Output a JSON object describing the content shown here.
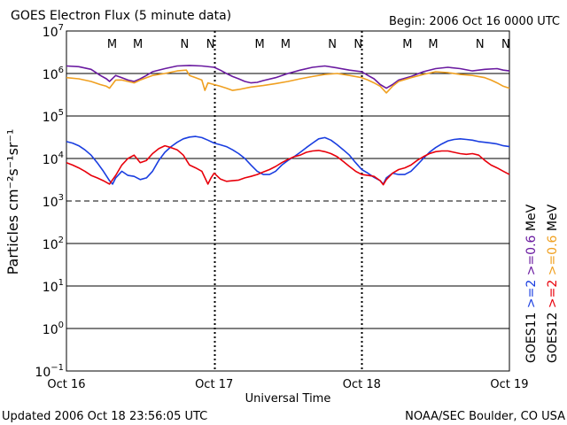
{
  "title": "GOES Electron Flux (5 minute data)",
  "begin_label": "Begin: 2006 Oct 16 0000 UTC",
  "updated_label": "Updated 2006 Oct 18 23:56:05 UTC",
  "credit_label": "NOAA/SEC Boulder, CO USA",
  "chart_data": {
    "type": "line",
    "title": "GOES Electron Flux (5 minute data)",
    "xlabel": "Universal Time",
    "ylabel": "Particles cm⁻²s⁻¹sr⁻¹",
    "y_scale": "log",
    "ylim": [
      0.1,
      10000000
    ],
    "xlim": [
      0,
      72
    ],
    "x_units": "hours since 2006 Oct 16 0000 UTC",
    "x_ticks": [
      {
        "x": 0,
        "label": "Oct 16"
      },
      {
        "x": 24,
        "label": "Oct 17"
      },
      {
        "x": 48,
        "label": "Oct 18"
      },
      {
        "x": 72,
        "label": "Oct 19"
      }
    ],
    "y_ticks": [
      {
        "value": 0.1,
        "base": "10",
        "exp": "−1"
      },
      {
        "value": 1,
        "base": "10",
        "exp": "0"
      },
      {
        "value": 10,
        "base": "10",
        "exp": "1"
      },
      {
        "value": 100,
        "base": "10",
        "exp": "2"
      },
      {
        "value": 1000,
        "base": "10",
        "exp": "3"
      },
      {
        "value": 10000,
        "base": "10",
        "exp": "4"
      },
      {
        "value": 100000,
        "base": "10",
        "exp": "5"
      },
      {
        "value": 1000000,
        "base": "10",
        "exp": "6"
      },
      {
        "value": 10000000,
        "base": "10",
        "exp": "7"
      }
    ],
    "threshold_line": 1000,
    "markers": [
      {
        "x": 7.7,
        "label": "M",
        "color": "#e8000b"
      },
      {
        "x": 11.9,
        "label": "M",
        "color": "#1a3ee0"
      },
      {
        "x": 19.5,
        "label": "N",
        "color": "#e8000b"
      },
      {
        "x": 23.7,
        "label": "N",
        "color": "#1a3ee0"
      },
      {
        "x": 31.7,
        "label": "M",
        "color": "#e8000b"
      },
      {
        "x": 35.9,
        "label": "M",
        "color": "#1a3ee0"
      },
      {
        "x": 43.5,
        "label": "N",
        "color": "#e8000b"
      },
      {
        "x": 47.7,
        "label": "N",
        "color": "#1a3ee0"
      },
      {
        "x": 55.7,
        "label": "M",
        "color": "#e8000b"
      },
      {
        "x": 59.9,
        "label": "M",
        "color": "#1a3ee0"
      },
      {
        "x": 67.5,
        "label": "N",
        "color": "#e8000b"
      },
      {
        "x": 71.7,
        "label": "N",
        "color": "#1a3ee0"
      }
    ],
    "legend": [
      {
        "satellite": "GOES11",
        "low": ">=2",
        "high": ">=0.6",
        "unit": "MeV",
        "low_color": "#1a3ee0",
        "high_color": "#6a1aa0"
      },
      {
        "satellite": "GOES12",
        "low": ">=2",
        "high": ">=0.6",
        "unit": "MeV",
        "low_color": "#e8000b",
        "high_color": "#f0a020"
      }
    ],
    "series": [
      {
        "color": "#6a1aa0",
        "points": [
          [
            0,
            1500000.0
          ],
          [
            2,
            1450000.0
          ],
          [
            4,
            1250000.0
          ],
          [
            5.5,
            900000.0
          ],
          [
            6.5,
            750000.0
          ],
          [
            7,
            650000.0
          ],
          [
            8,
            900000.0
          ],
          [
            9,
            800000.0
          ],
          [
            10,
            700000.0
          ],
          [
            11,
            650000.0
          ],
          [
            12,
            750000.0
          ],
          [
            13,
            900000.0
          ],
          [
            14,
            1100000.0
          ],
          [
            16,
            1300000.0
          ],
          [
            18,
            1500000.0
          ],
          [
            20,
            1550000.0
          ],
          [
            22,
            1500000.0
          ],
          [
            24,
            1400000.0
          ],
          [
            25,
            1200000.0
          ],
          [
            26,
            1000000.0
          ],
          [
            27,
            850000.0
          ],
          [
            28,
            750000.0
          ],
          [
            29,
            650000.0
          ],
          [
            30,
            600000.0
          ],
          [
            31,
            620000.0
          ],
          [
            32,
            680000.0
          ],
          [
            34,
            800000.0
          ],
          [
            36,
            1000000.0
          ],
          [
            38,
            1200000.0
          ],
          [
            40,
            1400000.0
          ],
          [
            42,
            1500000.0
          ],
          [
            44,
            1350000.0
          ],
          [
            46,
            1200000.0
          ],
          [
            48,
            1100000.0
          ],
          [
            49,
            900000.0
          ],
          [
            50,
            750000.0
          ],
          [
            51,
            550000.0
          ],
          [
            52,
            450000.0
          ],
          [
            53,
            550000.0
          ],
          [
            54,
            700000.0
          ],
          [
            56,
            850000.0
          ],
          [
            58,
            1100000.0
          ],
          [
            60,
            1300000.0
          ],
          [
            62,
            1400000.0
          ],
          [
            64,
            1300000.0
          ],
          [
            66,
            1150000.0
          ],
          [
            68,
            1250000.0
          ],
          [
            70,
            1300000.0
          ],
          [
            71,
            1200000.0
          ],
          [
            72,
            1150000.0
          ]
        ]
      },
      {
        "color": "#f0a020",
        "points": [
          [
            0,
            800000.0
          ],
          [
            2,
            750000.0
          ],
          [
            4,
            650000.0
          ],
          [
            5.5,
            550000.0
          ],
          [
            6.5,
            500000.0
          ],
          [
            7,
            450000.0
          ],
          [
            8,
            700000.0
          ],
          [
            9,
            700000.0
          ],
          [
            10,
            650000.0
          ],
          [
            11,
            600000.0
          ],
          [
            12,
            700000.0
          ],
          [
            13,
            800000.0
          ],
          [
            14,
            900000.0
          ],
          [
            16,
            1000000.0
          ],
          [
            18,
            1150000.0
          ],
          [
            19.5,
            1200000.0
          ],
          [
            20,
            900000.0
          ],
          [
            21,
            800000.0
          ],
          [
            22,
            700000.0
          ],
          [
            22.5,
            400000.0
          ],
          [
            23,
            600000.0
          ],
          [
            24,
            550000.0
          ],
          [
            25,
            500000.0
          ],
          [
            26,
            450000.0
          ],
          [
            27,
            400000.0
          ],
          [
            28,
            420000.0
          ],
          [
            30,
            480000.0
          ],
          [
            32,
            520000.0
          ],
          [
            34,
            580000.0
          ],
          [
            36,
            650000.0
          ],
          [
            38,
            750000.0
          ],
          [
            40,
            850000.0
          ],
          [
            42,
            950000.0
          ],
          [
            44,
            1000000.0
          ],
          [
            46,
            900000.0
          ],
          [
            48,
            800000.0
          ],
          [
            49,
            700000.0
          ],
          [
            50,
            600000.0
          ],
          [
            51,
            500000.0
          ],
          [
            52,
            350000.0
          ],
          [
            53,
            500000.0
          ],
          [
            54,
            650000.0
          ],
          [
            56,
            800000.0
          ],
          [
            58,
            950000.0
          ],
          [
            60,
            1100000.0
          ],
          [
            62,
            1050000.0
          ],
          [
            64,
            950000.0
          ],
          [
            66,
            900000.0
          ],
          [
            68,
            800000.0
          ],
          [
            69,
            700000.0
          ],
          [
            70,
            600000.0
          ],
          [
            71,
            500000.0
          ],
          [
            72,
            450000.0
          ]
        ]
      },
      {
        "color": "#1a3ee0",
        "points": [
          [
            0,
            25000.0
          ],
          [
            1,
            23000.0
          ],
          [
            2,
            20000.0
          ],
          [
            3,
            16000.0
          ],
          [
            4,
            12000.0
          ],
          [
            5,
            8000.0
          ],
          [
            6,
            5000.0
          ],
          [
            7,
            3000.0
          ],
          [
            7.5,
            2500.0
          ],
          [
            8,
            3500.0
          ],
          [
            9,
            5000.0
          ],
          [
            10,
            4000.0
          ],
          [
            11,
            3800.0
          ],
          [
            12,
            3200.0
          ],
          [
            13,
            3500.0
          ],
          [
            14,
            5000.0
          ],
          [
            15,
            9000.0
          ],
          [
            16,
            14000.0
          ],
          [
            17,
            19000.0
          ],
          [
            18,
            24000.0
          ],
          [
            19,
            29000.0
          ],
          [
            20,
            32000.0
          ],
          [
            21,
            33000.0
          ],
          [
            22,
            31000.0
          ],
          [
            23,
            27000.0
          ],
          [
            24,
            23000.0
          ],
          [
            25,
            21000.0
          ],
          [
            26,
            19000.0
          ],
          [
            27,
            16000.0
          ],
          [
            28,
            13000.0
          ],
          [
            29,
            10000.0
          ],
          [
            30,
            7000.0
          ],
          [
            31,
            5000.0
          ],
          [
            32,
            4200.0
          ],
          [
            33,
            4200.0
          ],
          [
            34,
            5000.0
          ],
          [
            35,
            7000.0
          ],
          [
            36,
            9000.0
          ],
          [
            37,
            11000.0
          ],
          [
            38,
            14000.0
          ],
          [
            39,
            18000.0
          ],
          [
            40,
            23000.0
          ],
          [
            41,
            29000.0
          ],
          [
            42,
            31000.0
          ],
          [
            43,
            27000.0
          ],
          [
            44,
            21000.0
          ],
          [
            45,
            16000.0
          ],
          [
            46,
            12000.0
          ],
          [
            47,
            8000.0
          ],
          [
            48,
            5500.0
          ],
          [
            49,
            4500.0
          ],
          [
            50,
            3600.0
          ],
          [
            51,
            3000.0
          ],
          [
            51.5,
            2500.0
          ],
          [
            52,
            3500.0
          ],
          [
            53,
            4500.0
          ],
          [
            54,
            4200.0
          ],
          [
            55,
            4200.0
          ],
          [
            56,
            5000.0
          ],
          [
            57,
            7000.0
          ],
          [
            58,
            10000.0
          ],
          [
            59,
            14000.0
          ],
          [
            60,
            18000.0
          ],
          [
            61,
            22000.0
          ],
          [
            62,
            26000.0
          ],
          [
            63,
            28000.0
          ],
          [
            64,
            29000.0
          ],
          [
            65,
            28000.0
          ],
          [
            66,
            27000.0
          ],
          [
            67,
            25000.0
          ],
          [
            68,
            24000.0
          ],
          [
            69,
            23000.0
          ],
          [
            70,
            22000.0
          ],
          [
            71,
            20000.0
          ],
          [
            72,
            19000.0
          ]
        ]
      },
      {
        "color": "#e8000b",
        "points": [
          [
            0,
            8000.0
          ],
          [
            1,
            7000.0
          ],
          [
            2,
            6000.0
          ],
          [
            3,
            5000.0
          ],
          [
            4,
            4000.0
          ],
          [
            5,
            3500.0
          ],
          [
            6,
            3000.0
          ],
          [
            7,
            2500.0
          ],
          [
            8,
            4000.0
          ],
          [
            9,
            7000.0
          ],
          [
            10,
            10000.0
          ],
          [
            11,
            12000.0
          ],
          [
            12,
            8000.0
          ],
          [
            13,
            9000.0
          ],
          [
            14,
            13000.0
          ],
          [
            15,
            17000.0
          ],
          [
            16,
            20000.0
          ],
          [
            17,
            18000.0
          ],
          [
            18,
            16000.0
          ],
          [
            19,
            12000.0
          ],
          [
            20,
            7000.0
          ],
          [
            21,
            6000.0
          ],
          [
            22,
            5000.0
          ],
          [
            23,
            2500.0
          ],
          [
            23.5,
            3500.0
          ],
          [
            24,
            4500.0
          ],
          [
            25,
            3300.0
          ],
          [
            26,
            2900.0
          ],
          [
            27,
            3000.0
          ],
          [
            28,
            3100.0
          ],
          [
            29,
            3500.0
          ],
          [
            30,
            3800.0
          ],
          [
            31,
            4200.0
          ],
          [
            32,
            4800.0
          ],
          [
            33,
            5500.0
          ],
          [
            34,
            6500.0
          ],
          [
            35,
            8000.0
          ],
          [
            36,
            9500.0
          ],
          [
            37,
            11000.0
          ],
          [
            38,
            12000.0
          ],
          [
            39,
            14000.0
          ],
          [
            40,
            15000.0
          ],
          [
            41,
            15500.0
          ],
          [
            42,
            14500.0
          ],
          [
            43,
            13000.0
          ],
          [
            44,
            11000.0
          ],
          [
            45,
            8500.0
          ],
          [
            46,
            6500.0
          ],
          [
            47,
            5000.0
          ],
          [
            48,
            4200.0
          ],
          [
            49,
            4000.0
          ],
          [
            50,
            3800.0
          ],
          [
            51,
            3000.0
          ],
          [
            51.5,
            2400.0
          ],
          [
            52,
            3200.0
          ],
          [
            53,
            4500.0
          ],
          [
            54,
            5500.0
          ],
          [
            55,
            6000.0
          ],
          [
            56,
            7000.0
          ],
          [
            57,
            9000.0
          ],
          [
            58,
            11000.0
          ],
          [
            59,
            13000.0
          ],
          [
            60,
            14500.0
          ],
          [
            61,
            15000.0
          ],
          [
            62,
            15000.0
          ],
          [
            63,
            14000.0
          ],
          [
            64,
            13000.0
          ],
          [
            65,
            12500.0
          ],
          [
            66,
            13000.0
          ],
          [
            67,
            12000.0
          ],
          [
            68,
            9000.0
          ],
          [
            69,
            7000.0
          ],
          [
            70,
            6000.0
          ],
          [
            71,
            5000.0
          ],
          [
            72,
            4200.0
          ]
        ]
      }
    ]
  }
}
